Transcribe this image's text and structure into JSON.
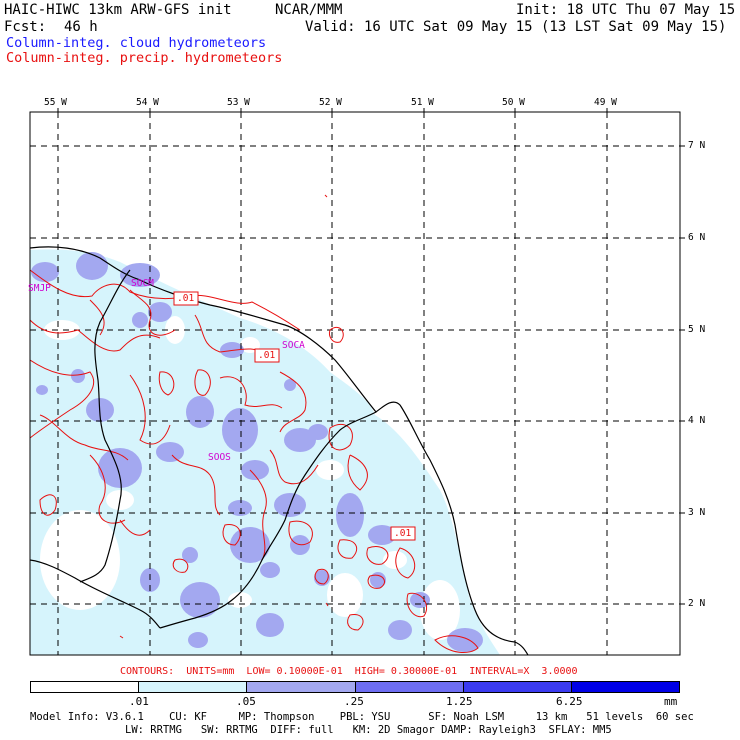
{
  "header": {
    "model_line": "HAIC-HIWC 13km ARW-GFS init",
    "agency": "NCAR/MMM",
    "init": "Init: 18 UTC Thu 07 May 15",
    "fcst_label": "Fcst:",
    "fcst_value": "46 h",
    "valid": "Valid: 16 UTC Sat 09 May 15 (13 LST Sat 09 May 15)",
    "legend_cloud": "Column-integ. cloud hydrometeors",
    "legend_precip": "Column-integ. precip. hydrometeors"
  },
  "axes": {
    "lon_labels": [
      "55 W",
      "54 W",
      "53 W",
      "52 W",
      "51 W",
      "50 W",
      "49 W"
    ],
    "lat_labels": [
      "7 N",
      "6 N",
      "5 N",
      "4 N",
      "3 N",
      "2 N"
    ]
  },
  "stations": [
    "SMJP",
    "SOCM",
    "SOCA",
    "SOOS"
  ],
  "contour_labels": [
    ".01",
    ".01",
    ".01"
  ],
  "contours_info": "CONTOURS:  UNITS=mm  LOW= 0.10000E-01  HIGH= 0.30000E-01  INTERVAL=X  3.0000",
  "colorbar": {
    "labels": [
      ".01",
      ".05",
      ".25",
      "1.25",
      "6.25"
    ],
    "unit": "mm",
    "colors": [
      "#ffffff",
      "#d6f4fc",
      "#a3a8f0",
      "#6e6ef2",
      "#3b3bf0",
      "#0000e6"
    ]
  },
  "footer": {
    "line1": "Model Info: V3.6.1    CU: KF     MP: Thompson    PBL: YSU      SF: Noah LSM     13 km   51 levels  60 sec",
    "line2": "LW: RRTMG   SW: RRTMG  DIFF: full   KM: 2D Smagor DAMP: Rayleigh3  SFLAY: MM5"
  }
}
